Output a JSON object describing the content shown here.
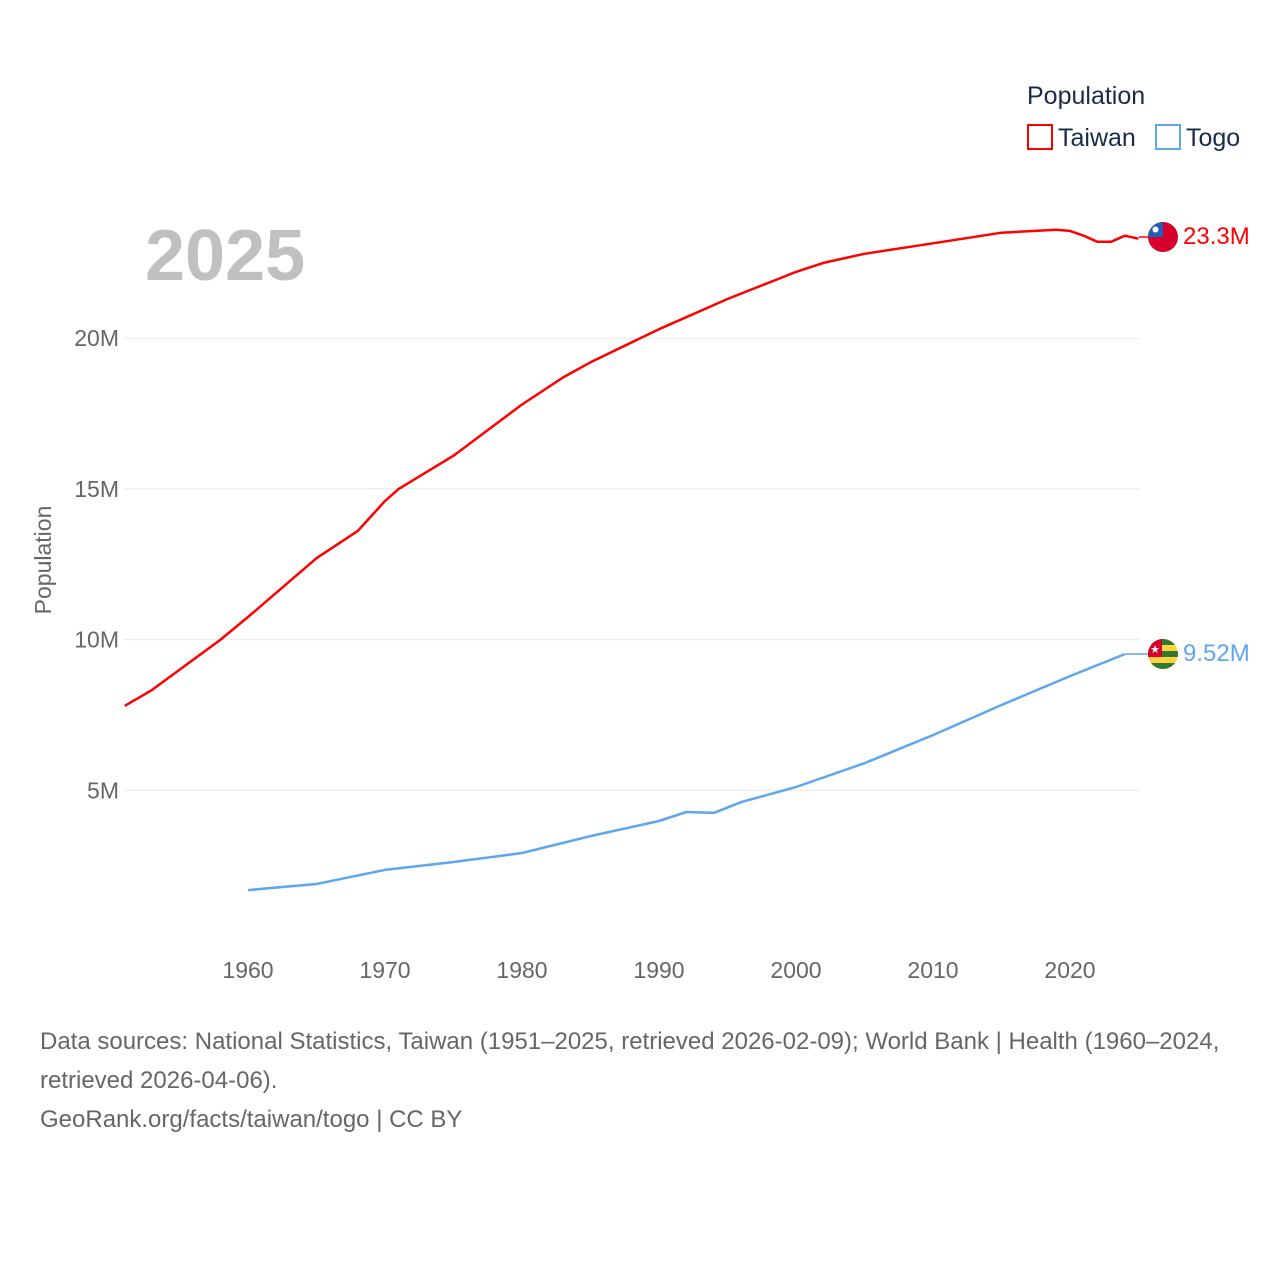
{
  "chart_data": {
    "type": "line",
    "title": "",
    "year_label": "2025",
    "xlabel": "",
    "ylabel": "Population",
    "xlim": [
      1951,
      2025
    ],
    "ylim": [
      0,
      23.5
    ],
    "grid": true,
    "x_ticks": [
      1960,
      1970,
      1980,
      1990,
      2000,
      2010,
      2020
    ],
    "x_tick_labels": [
      "1960",
      "1970",
      "1980",
      "1990",
      "2000",
      "2010",
      "2020"
    ],
    "y_ticks": [
      5,
      10,
      15,
      20
    ],
    "y_tick_labels": [
      "5M",
      "10M",
      "15M",
      "20M"
    ],
    "legend": {
      "title": "Population",
      "placement": "top-right"
    },
    "series": [
      {
        "name": "Taiwan",
        "color": "#ff0000",
        "end_label": "23.3M",
        "flag": "taiwan-flag",
        "x": [
          1951,
          1953,
          1955,
          1958,
          1960,
          1965,
          1968,
          1970,
          1971,
          1975,
          1980,
          1983,
          1985,
          1990,
          1995,
          2000,
          2002,
          2005,
          2010,
          2015,
          2019,
          2020,
          2021,
          2022,
          2023,
          2024,
          2025
        ],
        "values": [
          7.8,
          8.33,
          9.0,
          10.0,
          10.75,
          12.7,
          13.6,
          14.6,
          15.0,
          16.1,
          17.8,
          18.7,
          19.2,
          20.3,
          21.3,
          22.2,
          22.5,
          22.8,
          23.15,
          23.5,
          23.6,
          23.56,
          23.4,
          23.2,
          23.2,
          23.4,
          23.3
        ]
      },
      {
        "name": "Togo",
        "color": "#5ea6ee",
        "end_label": "9.52M",
        "flag": "togo-flag",
        "x": [
          1960,
          1965,
          1970,
          1975,
          1980,
          1985,
          1990,
          1992,
          1994,
          1996,
          2000,
          2005,
          2010,
          2015,
          2020,
          2024
        ],
        "values": [
          1.69,
          1.89,
          2.36,
          2.62,
          2.92,
          3.48,
          3.98,
          4.28,
          4.25,
          4.61,
          5.11,
          5.9,
          6.83,
          7.83,
          8.79,
          9.52
        ]
      }
    ]
  },
  "footer": {
    "sources": "Data sources: National Statistics, Taiwan (1951–2025, retrieved 2026-02-09); World Bank | Health (1960–2024, retrieved 2026-04-06).",
    "attribution": "GeoRank.org/facts/taiwan/togo | CC BY"
  }
}
